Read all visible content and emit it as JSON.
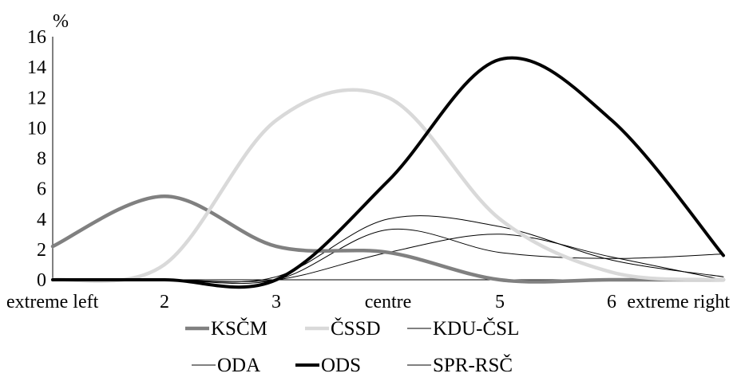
{
  "chart_data": {
    "type": "line",
    "ylabel": "%",
    "ylim": [
      0,
      16
    ],
    "yticks": [
      "0",
      "2",
      "4",
      "6",
      "8",
      "10",
      "12",
      "14",
      "16"
    ],
    "categories": [
      "extreme left",
      "2",
      "3",
      "centre",
      "5",
      "6",
      "extreme right"
    ],
    "grid": false,
    "legend_position": "bottom",
    "series": [
      {
        "name": "KSČM",
        "color": "#808080",
        "width": 4.5,
        "values": [
          2.2,
          5.5,
          2.2,
          1.8,
          0.0,
          0.0,
          0.0
        ]
      },
      {
        "name": "ČSSD",
        "color": "#d9d9d9",
        "width": 4.5,
        "values": [
          0.0,
          1.0,
          10.5,
          12.0,
          4.0,
          0.5,
          0.0
        ]
      },
      {
        "name": "KDU-ČSL",
        "color": "#000000",
        "width": 1,
        "values": [
          0.0,
          0.0,
          0.2,
          4.0,
          3.5,
          1.3,
          0.2
        ]
      },
      {
        "name": "ODA",
        "color": "#000000",
        "width": 1,
        "values": [
          0.0,
          0.0,
          0.0,
          3.3,
          1.8,
          1.4,
          1.7
        ]
      },
      {
        "name": "ODS",
        "color": "#000000",
        "width": 4,
        "values": [
          0.0,
          0.0,
          0.0,
          6.5,
          14.5,
          10.5,
          1.6
        ]
      },
      {
        "name": "SPR-RSČ",
        "color": "#000000",
        "width": 1,
        "values": [
          0.0,
          0.0,
          0.0,
          1.8,
          3.0,
          1.5,
          0.0
        ]
      }
    ]
  }
}
